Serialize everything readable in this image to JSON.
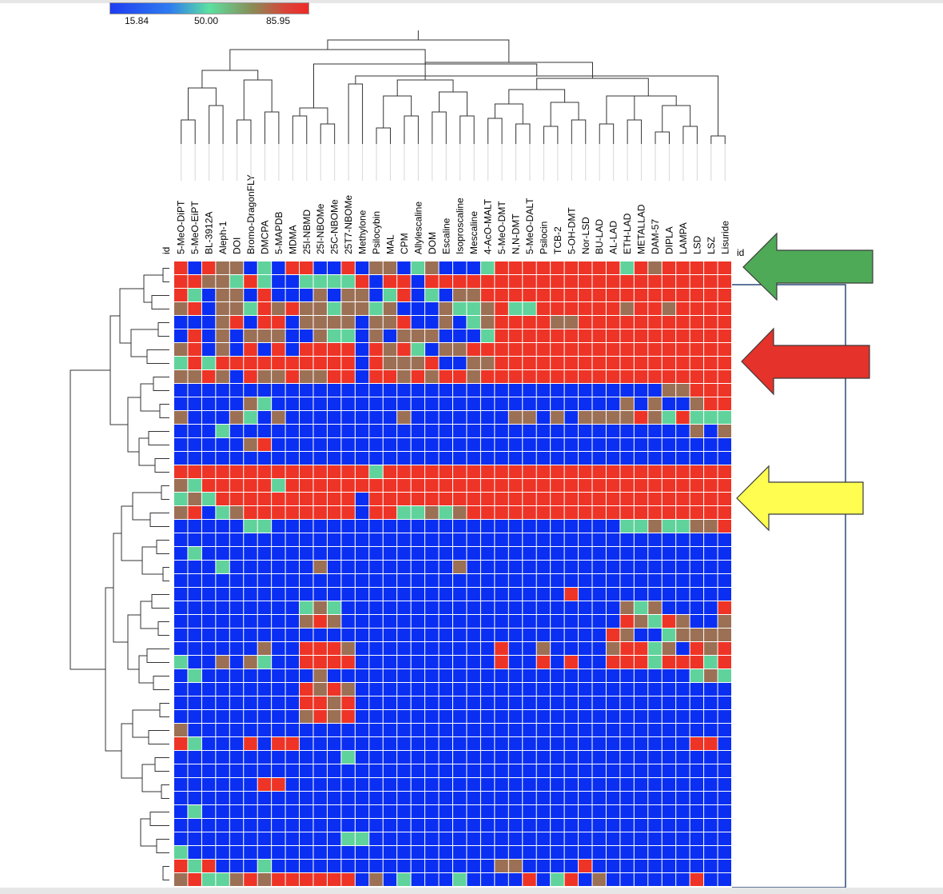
{
  "legend": {
    "min_label": "15.84",
    "mid_label": "50.00",
    "max_label": "85.95"
  },
  "colors": {
    "low": "#0a2ff2",
    "cool": "#4a78d0",
    "mid": "#5fd39b",
    "warm": "#9c7055",
    "high": "#ee3426",
    "arrow_green": "#4faa58",
    "arrow_red": "#e5322a",
    "arrow_yellow": "#fefd50",
    "bracket": "#2b4a78"
  },
  "chart_data": {
    "type": "heatmap",
    "value_range": [
      15.84,
      85.95
    ],
    "row_id_label": "id",
    "right_id_label": "id",
    "columns": [
      "5-MeO-DiPT",
      "5-MeO-EiPT",
      "BL-3912A",
      "Aleph-1",
      "DOI",
      "Bromo-DragonFLY",
      "DMCPA",
      "5-MAPDB",
      "MDMA",
      "25I-NBMD",
      "25I-NBOMe",
      "25C-NBOMe",
      "25T7-NBOMe",
      "Methylone",
      "Psilocybin",
      "MAL",
      "CPM",
      "Allylescaline",
      "DOM",
      "Escaline",
      "Isoproscaline",
      "Mescaline",
      "4-AcO-MALT",
      "5-MeO-DMT",
      "N,N-DMT",
      "5-MeO-DALT",
      "Psilocin",
      "TCB-2",
      "5-OH-DMT",
      "Nor-LSD",
      "BU-LAD",
      "AL-LAD",
      "ETH-LAD",
      "METALLAD",
      "DAM-57",
      "DIPLA",
      "LAMPA",
      "LSD",
      "LSZ",
      "Lisuride"
    ],
    "rows": [
      "HBHMMBWBHHBBHBMMBWMBBBWHHHHHHHHHWHMHHHHH",
      "HHMMWHWBBWWWWHBHHBHHHHHHHHHHHHHHHHHHHHHH",
      "HWBMMBHBBBMBMMBWHBWBMMHHHHHHHHHHHHHHHHHH",
      "MHBMMWHMHMMWMMWMBBBMWWMHWWHHHHHHMHHMHHHH",
      "BBBMHBHHBMMMMBMMHBBMBWMHHHHMMHHHHHHHHHHH",
      "BHBMBMMMBBMWWBMBMMMBBBWHHHHHHHHHHHHHHHHH",
      "MHBMBHBHBHHHHBHMHWBMMHHHHHHHHHHHHHHHHHHH",
      "WHWHHHHHHHHHHBHMMMHBBMMHHHHHHHHHHHHHHHHH",
      "MMHMBHMMHMMHHBHHMHMHHMHHHHHHHHHHHHHHHHHH",
      "BBBBBBBBBBBBBBBBBBBBBBBBBBBBBBBBBBBMMHHH",
      "BBBBBMWBBBBBBBBBBBBBBBBBBBBBBBBBMBMBBMHH",
      "MBBBMWBMBBBBBBBBMBBBBBBBMMBMBMMMMHMWHWWW",
      "BBBWBBBBBBBBBBBBBBBBBBBBBBBBBBBBBBBBBMBM",
      "BBBBBMHBBBBBBBBBBBBBBBBBBBBBBBBBBBBBBBBB",
      "BBBBBBBBBBBBBBBBBBBBBBBBBBBBBBBBBBBBBBBB",
      "HHHHHHHHHHHHHHWHHHHHHHHHHHHHHHHHHHHHHHHH",
      "MWHHHHHWHHHHHHHHHHHHHHHHHHHHHHHHHHHHHHHH",
      "WMWHHHHHHHHHHBHHHHHHHHHHHHHHHHHHHHHHHHHH",
      "MHBWMHHHHHHHHBHHWWMWMHHHHHHHHHHHHHHHHHHH",
      "BBBBBWWBBBBBBBBBBBBBBBBBBBBBBBBBWWMWWMMH",
      "BBBBBBBBBBBBBBBBBBBBBBBBBBBBBBBBBBBBBBBB",
      "BBWBBBBBBBBBBBBBBBBBBBBBBBBBBBBBBBBBBBBB",
      "BBBBBBBBBBBBBBBBBBBBBBBBBBBBBBBBBBBBBBBB",
      "BBBBBBBBBBBBBBBBBBBBBBBBBBBBBBBBBBBBBBBB",
      "BBBBBBBBBBBBBBBBBBBBBBBBBBBBBBBBBBBBBBBB",
      "BBBBBBBBBBBBBBBBBBBBBBBBBBBBBBBBBBBBBBBB",
      "BBBBBBBBBBBBBBBBBBBBBBBBBBBBBBBBBBBBBBBB",
      "BBBBBBBBBBBBBBBBBBBBBBBBBBBBBBBBBBBBBBBB",
      "BBBBBBBBBBBBBBBBBBBBBBBBBBBBBBBBBBBBBBBB",
      "BBBBBBBBBBBBBBBBBBBBBBBBBBBBBBBBBBBBBBBB",
      "BBBBBBBBBBBBBBBBBBBBBBBBBBBBBBBBBBBBBBBB",
      "BBBBBBBBBBBBBBBBBBBBBBBBBBBBBBBBBBBBBBBB",
      "BBBBBBBBBBBBBBBBBBBBBBBBBBBBBBBBBBBBBBBB",
      "BBBBBBBBBBBBBBBBBBBBBBBBBBBBBBBBBBBBBBBB",
      "BBBBBBBBBBBBBBBBBBBBBBBBBBBBBBBBBBBBBBBB",
      "BBBBBBBBBBBBBBBBBBBBBBBBBBBBBBBBBBBBBBBB",
      "BBBBBBBBBBBBBBBBBBBBBBBBBBBBBBBBBBBBBBBB",
      "BBBBBBBBBBBBBBBBBBBBBBBBBBBBBBBBBBBBBBBB",
      "BBBBBBBBBBBBBBBBBBBBBBBBBBBBBBBBBBBBBBBB",
      "BBBBBBBBBBBBBBBBBBBBBBBBBBBBBBBBBBBBBBBB",
      "BBBBBBBBBBBBBBBBBBBBBBBBBBBBBBBBBBBBBBBB",
      "BBBBBBBBBBBBBBBBBBBBBBBBBBBBBBBBBBBBBBBB",
      "BBBBBBBBBBBBBBBBBBBBBBBBBBBBBBBBBBBBBBBB",
      "BBBBBBBBBBBBBBBBBBBBBBBBBBBBBBBBBBBBBBBB",
      "BBBBBBBBBBBBBBBBBBBBBBBBBBBBBBBBBBBBBBBB",
      "BBBBBBBBBBBBBBBBBBBBBBBBBBBBBBBBBBBBBBBB"
    ],
    "row_overrides": {
      "20": "BBBBBBBBBBBBBBBBBBBBBBBBBBBBBBBBBBBBBBBB",
      "21": "BWBBBBBBBBBBBBBBBBBBBBBBBBBBBBBBBBBBBBBB",
      "22": "BBBWBBBBBBMBBBBBBBBBMBBBBBBBBBBBBBBBBBBB",
      "23": "BBBBBBBBBBBBBBBBBBBBBBBBBBBBBBBBBBBBBBBB",
      "24": "BBBBBBBBBBBBBBBBBBBBBBBBBBBBHBBBBBBBBBBB",
      "25": "BBBBBBBBBWMWBBBBBBBBBBBBBBBBBBBBMWMBBBBH",
      "26": "BBBBBBBBBMHMBBBBBBBBBBBBBBBBBBBBHMWHMBBM",
      "27": "BBBBBBBBBBBBBBBBBBBBBBBBBBBBBBBHMBBWMMMM",
      "28": "BBBBBBMBBHHHMBBBBBBBBBBHBBMBBBBMHHWMBHMH",
      "29": "WBBMBMWBBHHHHBBBBBBBBBBHBBHBHBBHHHWHHHWH",
      "30": "BWBBBBBBBBMBBBBBBBBBBBBBBBBBBBBBBBBBBWMW",
      "31": "BBBBBBBBBHMHMBBBBBBBBBBBBBBBBBBBBBBBBBBB",
      "32": "BBBBBBBBBHHMHBBBBBBBBBBBBBBBBBBBBBBBBBBB",
      "33": "BBBBBBBBBMHMHBBBBBBBBBBBBBBBBBBBBBBBBBBB",
      "34": "MBBBBBBBBBBBBBBBBBBBBBBBBBBBBBBBBBBBBBBB",
      "35": "HWBBBHBHHBBBBBBBBBBBBBBBBBBBBBBBBBBBBHHB",
      "36": "BBBBBBBBBBBBWBBBBBBBBBBBBBBBBBBBBBBBBBBB",
      "37": "BBBBBBBBBBBBBBBBBBBBBBBBBBBBBBBBBBBBBBBB",
      "38": "BBBBBBHHBBBBBBBBBBBBBBBBBBBBBBBBBBBBBBBB",
      "39": "BBBBBBBBBBBBBBBBBBBBBBBBBBBBBBBBBBBBBBBB",
      "40": "BWBBBBBBBBBBBBBBBBBBBBBBBBBBBBBBBBBBBBBB",
      "41": "BBBBBBBBBBBBBBBBBBBBBBBBBBBBBBBBBBBBBBBB",
      "42": "BBBBBBBBBBBBWWBBBBBBBBBBBBBBBBBBBBBBBBBB",
      "43": "WBBBBBBBBBBBBBBBBBBBBBBBBBBBBBBBBBBBBBBB",
      "44": "HWHBBBWBBBBBBBBBBBBBBBBMMBBBBHBBBBBBBBBB",
      "45": "MHWWMHMHHHHHHBMBWBBBWBBBBHBWHBMBBBBBBHBB"
    }
  }
}
